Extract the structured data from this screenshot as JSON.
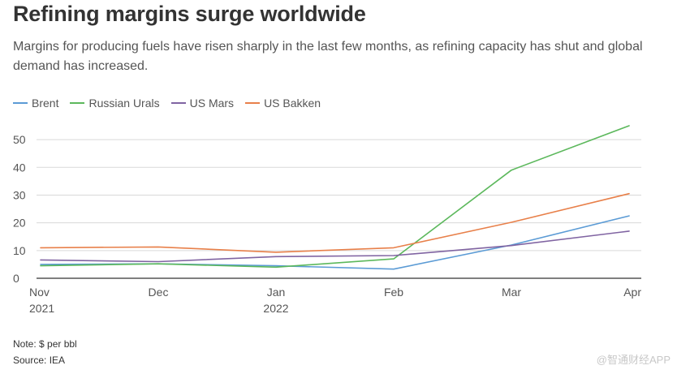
{
  "title": "Refining margins surge worldwide",
  "subtitle": "Margins for producing fuels have risen sharply in the last few months, as refining capacity has shut and global demand has increased.",
  "note": "Note: $ per bbl",
  "source": "Source: IEA",
  "watermark": "@智通财经APP",
  "chart_data": {
    "type": "line",
    "title": "Refining margins surge worldwide",
    "xlabel": "",
    "ylabel": "$ per bbl",
    "ylim": [
      0,
      55
    ],
    "yticks": [
      0,
      10,
      20,
      30,
      40,
      50
    ],
    "x": [
      0,
      1,
      2,
      3,
      4,
      5
    ],
    "xtick_labels": [
      {
        "main": "Nov",
        "sub": "2021"
      },
      {
        "main": "Dec",
        "sub": ""
      },
      {
        "main": "Jan",
        "sub": "2022"
      },
      {
        "main": "Feb",
        "sub": ""
      },
      {
        "main": "Mar",
        "sub": ""
      },
      {
        "main": "Apr",
        "sub": ""
      }
    ],
    "grid": true,
    "legend": "top-left",
    "series": [
      {
        "name": "Brent",
        "color": "#5b9bd5",
        "values": [
          5,
          5.2,
          4.5,
          3.3,
          12,
          22.5
        ]
      },
      {
        "name": "Russian Urals",
        "color": "#5cb85c",
        "values": [
          4.5,
          5.2,
          4,
          7,
          39,
          55
        ]
      },
      {
        "name": "US Mars",
        "color": "#8064a2",
        "values": [
          6.6,
          6,
          7.8,
          8.2,
          11.8,
          17
        ]
      },
      {
        "name": "US Bakken",
        "color": "#e8804a",
        "values": [
          11,
          11.3,
          9.4,
          11,
          20.2,
          30.5
        ]
      }
    ]
  }
}
